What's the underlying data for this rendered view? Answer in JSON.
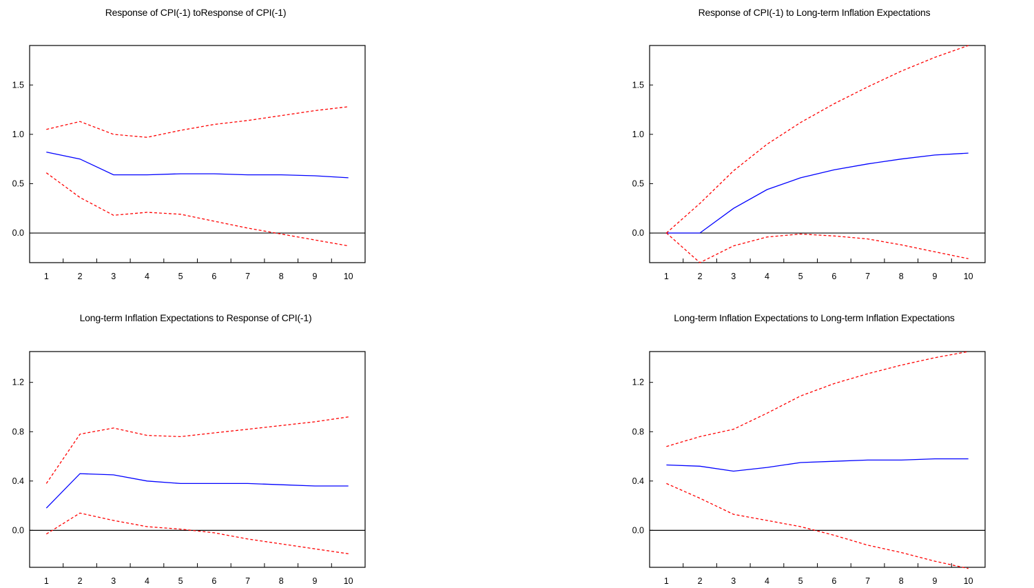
{
  "chart_data": [
    {
      "type": "line",
      "title": "Response of CPI(-1) toResponse of CPI(-1)",
      "x": [
        1,
        2,
        3,
        4,
        5,
        6,
        7,
        8,
        9,
        10
      ],
      "ylim": [
        -0.3,
        1.9
      ],
      "yticks": [
        0.0,
        0.5,
        1.0,
        1.5
      ],
      "ytick_labels": [
        "0.0",
        "0.5",
        "1.0",
        "1.5"
      ],
      "xtick_labels": [
        "1",
        "2",
        "3",
        "4",
        "5",
        "6",
        "7",
        "8",
        "9",
        "10"
      ],
      "series": [
        {
          "role": "response",
          "color": "#0000ff",
          "values": [
            0.82,
            0.75,
            0.59,
            0.59,
            0.6,
            0.6,
            0.59,
            0.59,
            0.58,
            0.56
          ]
        },
        {
          "role": "upper",
          "color": "#ff0000",
          "values": [
            1.05,
            1.13,
            1.0,
            0.97,
            1.04,
            1.1,
            1.14,
            1.19,
            1.24,
            1.28
          ]
        },
        {
          "role": "lower",
          "color": "#ff0000",
          "values": [
            0.61,
            0.36,
            0.18,
            0.21,
            0.19,
            0.12,
            0.05,
            -0.01,
            -0.07,
            -0.13
          ]
        }
      ]
    },
    {
      "type": "line",
      "title": "Response of CPI(-1) to Long-term Inflation Expectations",
      "x": [
        1,
        2,
        3,
        4,
        5,
        6,
        7,
        8,
        9,
        10
      ],
      "ylim": [
        -0.3,
        1.9
      ],
      "yticks": [
        0.0,
        0.5,
        1.0,
        1.5
      ],
      "ytick_labels": [
        "0.0",
        "0.5",
        "1.0",
        "1.5"
      ],
      "xtick_labels": [
        "1",
        "2",
        "3",
        "4",
        "5",
        "6",
        "7",
        "8",
        "9",
        "10"
      ],
      "series": [
        {
          "role": "response",
          "color": "#0000ff",
          "values": [
            0.0,
            0.0,
            0.25,
            0.44,
            0.56,
            0.64,
            0.7,
            0.75,
            0.79,
            0.81
          ]
        },
        {
          "role": "upper",
          "color": "#ff0000",
          "values": [
            0.0,
            0.3,
            0.63,
            0.9,
            1.12,
            1.31,
            1.48,
            1.64,
            1.78,
            1.9
          ]
        },
        {
          "role": "lower",
          "color": "#ff0000",
          "values": [
            0.0,
            -0.3,
            -0.13,
            -0.04,
            -0.01,
            -0.03,
            -0.06,
            -0.12,
            -0.19,
            -0.26
          ]
        }
      ]
    },
    {
      "type": "line",
      "title": "Long-term Inflation Expectations to Response of CPI(-1)",
      "x": [
        1,
        2,
        3,
        4,
        5,
        6,
        7,
        8,
        9,
        10
      ],
      "ylim": [
        -0.3,
        1.45
      ],
      "yticks": [
        0.0,
        0.4,
        0.8,
        1.2
      ],
      "ytick_labels": [
        "0.0",
        "0.4",
        "0.8",
        "1.2"
      ],
      "xtick_labels": [
        "1",
        "2",
        "3",
        "4",
        "5",
        "6",
        "7",
        "8",
        "9",
        "10"
      ],
      "series": [
        {
          "role": "response",
          "color": "#0000ff",
          "values": [
            0.18,
            0.46,
            0.45,
            0.4,
            0.38,
            0.38,
            0.38,
            0.37,
            0.36,
            0.36
          ]
        },
        {
          "role": "upper",
          "color": "#ff0000",
          "values": [
            0.38,
            0.78,
            0.83,
            0.77,
            0.76,
            0.79,
            0.82,
            0.85,
            0.88,
            0.92
          ]
        },
        {
          "role": "lower",
          "color": "#ff0000",
          "values": [
            -0.03,
            0.14,
            0.08,
            0.03,
            0.01,
            -0.02,
            -0.07,
            -0.11,
            -0.15,
            -0.19
          ]
        }
      ]
    },
    {
      "type": "line",
      "title": "Long-term Inflation Expectations to Long-term Inflation Expectations",
      "x": [
        1,
        2,
        3,
        4,
        5,
        6,
        7,
        8,
        9,
        10
      ],
      "ylim": [
        -0.3,
        1.45
      ],
      "yticks": [
        0.0,
        0.4,
        0.8,
        1.2
      ],
      "ytick_labels": [
        "0.0",
        "0.4",
        "0.8",
        "1.2"
      ],
      "xtick_labels": [
        "1",
        "2",
        "3",
        "4",
        "5",
        "6",
        "7",
        "8",
        "9",
        "10"
      ],
      "series": [
        {
          "role": "response",
          "color": "#0000ff",
          "values": [
            0.53,
            0.52,
            0.48,
            0.51,
            0.55,
            0.56,
            0.57,
            0.57,
            0.58,
            0.58
          ]
        },
        {
          "role": "upper",
          "color": "#ff0000",
          "values": [
            0.68,
            0.76,
            0.82,
            0.95,
            1.09,
            1.19,
            1.27,
            1.34,
            1.4,
            1.45
          ]
        },
        {
          "role": "lower",
          "color": "#ff0000",
          "values": [
            0.38,
            0.26,
            0.13,
            0.08,
            0.03,
            -0.04,
            -0.12,
            -0.18,
            -0.25,
            -0.31
          ]
        }
      ]
    }
  ]
}
